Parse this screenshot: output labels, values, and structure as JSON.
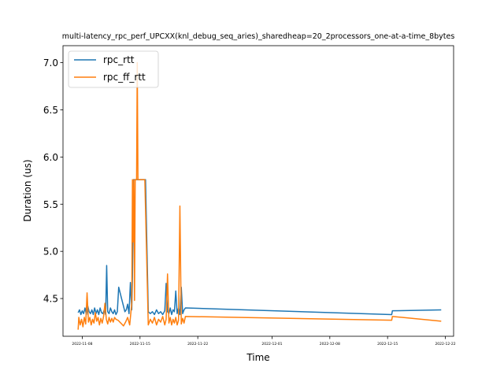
{
  "chart_data": {
    "type": "line",
    "title": "multi-latency_rpc_perf_UPCXX(knl_debug_seq_aries)_sharedheap=20_2processors_one-at-a-time_8bytes",
    "xlabel": "Time",
    "ylabel": "Duration (us)",
    "xlim": [
      "2022-11-05T16:00",
      "2022-12-23T00:00"
    ],
    "ylim": [
      4.1,
      7.18
    ],
    "xticks": [
      "2022-11-08",
      "2022-11-15",
      "2022-11-22",
      "2022-12-01",
      "2022-12-08",
      "2022-12-15",
      "2022-12-22"
    ],
    "yticks": [
      4.5,
      5.0,
      5.5,
      6.0,
      6.5,
      7.0
    ],
    "legend_position": "top-left",
    "colors": {
      "rpc_rtt": "#1f77b4",
      "rpc_ff_rtt": "#ff7f0e"
    },
    "series": [
      {
        "name": "rpc_rtt",
        "color": "#1f77b4",
        "points": [
          [
            "2022-11-07T12:00",
            4.35
          ],
          [
            "2022-11-07T16:00",
            4.38
          ],
          [
            "2022-11-07T20:00",
            4.33
          ],
          [
            "2022-11-08T00:00",
            4.37
          ],
          [
            "2022-11-08T04:00",
            4.34
          ],
          [
            "2022-11-08T08:00",
            4.4
          ],
          [
            "2022-11-08T12:00",
            4.33
          ],
          [
            "2022-11-08T16:00",
            4.42
          ],
          [
            "2022-11-08T20:00",
            4.36
          ],
          [
            "2022-11-09T00:00",
            4.34
          ],
          [
            "2022-11-09T04:00",
            4.38
          ],
          [
            "2022-11-09T08:00",
            4.33
          ],
          [
            "2022-11-09T12:00",
            4.4
          ],
          [
            "2022-11-09T16:00",
            4.34
          ],
          [
            "2022-11-09T20:00",
            4.38
          ],
          [
            "2022-11-10T00:00",
            4.33
          ],
          [
            "2022-11-10T04:00",
            4.4
          ],
          [
            "2022-11-10T08:00",
            4.35
          ],
          [
            "2022-11-10T12:00",
            4.34
          ],
          [
            "2022-11-10T16:00",
            4.38
          ],
          [
            "2022-11-10T20:00",
            4.33
          ],
          [
            "2022-11-10T23:00",
            4.85
          ],
          [
            "2022-11-11T02:00",
            4.36
          ],
          [
            "2022-11-11T06:00",
            4.34
          ],
          [
            "2022-11-11T10:00",
            4.4
          ],
          [
            "2022-11-11T14:00",
            4.36
          ],
          [
            "2022-11-11T18:00",
            4.34
          ],
          [
            "2022-11-11T22:00",
            4.38
          ],
          [
            "2022-11-12T02:00",
            4.33
          ],
          [
            "2022-11-12T06:00",
            4.36
          ],
          [
            "2022-11-12T10:00",
            4.62
          ],
          [
            "2022-11-13T04:00",
            4.36
          ],
          [
            "2022-11-13T08:00",
            4.38
          ],
          [
            "2022-11-13T12:00",
            4.44
          ],
          [
            "2022-11-13T16:00",
            4.34
          ],
          [
            "2022-11-13T20:00",
            4.67
          ],
          [
            "2022-11-14T00:00",
            4.38
          ],
          [
            "2022-11-14T02:00",
            4.73
          ],
          [
            "2022-11-14T05:00",
            5.76
          ],
          [
            "2022-11-14T08:00",
            5.76
          ],
          [
            "2022-11-14T13:00",
            5.76
          ],
          [
            "2022-11-14T18:00",
            5.76
          ],
          [
            "2022-11-14T22:00",
            5.76
          ],
          [
            "2022-11-15T04:00",
            5.76
          ],
          [
            "2022-11-15T10:00",
            5.76
          ],
          [
            "2022-11-15T16:00",
            5.76
          ],
          [
            "2022-11-16T00:00",
            4.36
          ],
          [
            "2022-11-16T06:00",
            4.34
          ],
          [
            "2022-11-16T12:00",
            4.36
          ],
          [
            "2022-11-16T18:00",
            4.33
          ],
          [
            "2022-11-17T00:00",
            4.38
          ],
          [
            "2022-11-17T06:00",
            4.34
          ],
          [
            "2022-11-17T12:00",
            4.36
          ],
          [
            "2022-11-17T18:00",
            4.33
          ],
          [
            "2022-11-18T00:00",
            4.37
          ],
          [
            "2022-11-18T04:00",
            4.66
          ],
          [
            "2022-11-18T08:00",
            4.36
          ],
          [
            "2022-11-18T12:00",
            4.34
          ],
          [
            "2022-11-18T16:00",
            4.4
          ],
          [
            "2022-11-18T20:00",
            4.33
          ],
          [
            "2022-11-19T00:00",
            4.38
          ],
          [
            "2022-11-19T04:00",
            4.36
          ],
          [
            "2022-11-19T08:00",
            4.58
          ],
          [
            "2022-11-19T12:00",
            4.34
          ],
          [
            "2022-11-19T16:00",
            4.4
          ],
          [
            "2022-11-19T20:00",
            4.33
          ],
          [
            "2022-11-20T00:00",
            4.62
          ],
          [
            "2022-11-20T04:00",
            4.34
          ],
          [
            "2022-11-20T08:00",
            4.38
          ],
          [
            "2022-11-20T12:00",
            4.4
          ],
          [
            "2022-12-15T12:00",
            4.33
          ],
          [
            "2022-12-15T14:00",
            4.37
          ],
          [
            "2022-12-21T12:00",
            4.38
          ]
        ]
      },
      {
        "name": "rpc_ff_rtt",
        "color": "#ff7f0e",
        "points": [
          [
            "2022-11-07T12:00",
            4.17
          ],
          [
            "2022-11-07T14:00",
            4.3
          ],
          [
            "2022-11-07T18:00",
            4.22
          ],
          [
            "2022-11-07T22:00",
            4.28
          ],
          [
            "2022-11-08T02:00",
            4.2
          ],
          [
            "2022-11-08T06:00",
            4.3
          ],
          [
            "2022-11-08T10:00",
            4.23
          ],
          [
            "2022-11-08T14:00",
            4.56
          ],
          [
            "2022-11-08T18:00",
            4.25
          ],
          [
            "2022-11-08T22:00",
            4.3
          ],
          [
            "2022-11-09T02:00",
            4.22
          ],
          [
            "2022-11-09T06:00",
            4.28
          ],
          [
            "2022-11-09T10:00",
            4.24
          ],
          [
            "2022-11-09T14:00",
            4.35
          ],
          [
            "2022-11-09T18:00",
            4.26
          ],
          [
            "2022-11-09T22:00",
            4.3
          ],
          [
            "2022-11-10T02:00",
            4.22
          ],
          [
            "2022-11-10T06:00",
            4.29
          ],
          [
            "2022-11-10T10:00",
            4.24
          ],
          [
            "2022-11-10T14:00",
            4.31
          ],
          [
            "2022-11-10T18:00",
            4.45
          ],
          [
            "2022-11-10T22:00",
            4.28
          ],
          [
            "2022-11-11T02:00",
            4.23
          ],
          [
            "2022-11-11T06:00",
            4.3
          ],
          [
            "2022-11-11T10:00",
            4.25
          ],
          [
            "2022-11-11T14:00",
            4.29
          ],
          [
            "2022-11-11T18:00",
            4.25
          ],
          [
            "2022-11-11T22:00",
            4.3
          ],
          [
            "2022-11-12T02:00",
            4.28
          ],
          [
            "2022-11-12T08:00",
            4.27
          ],
          [
            "2022-11-13T00:00",
            4.21
          ],
          [
            "2022-11-13T06:00",
            4.25
          ],
          [
            "2022-11-13T12:00",
            4.3
          ],
          [
            "2022-11-13T18:00",
            4.22
          ],
          [
            "2022-11-14T00:00",
            4.45
          ],
          [
            "2022-11-14T02:00",
            5.76
          ],
          [
            "2022-11-14T04:00",
            5.1
          ],
          [
            "2022-11-14T06:00",
            5.76
          ],
          [
            "2022-11-14T08:00",
            4.48
          ],
          [
            "2022-11-14T10:00",
            5.76
          ],
          [
            "2022-11-14T14:00",
            5.76
          ],
          [
            "2022-11-14T16:00",
            7.0
          ],
          [
            "2022-11-14T18:00",
            5.76
          ],
          [
            "2022-11-15T06:00",
            5.76
          ],
          [
            "2022-11-15T14:00",
            5.76
          ],
          [
            "2022-11-16T00:00",
            4.22
          ],
          [
            "2022-11-16T06:00",
            4.28
          ],
          [
            "2022-11-16T12:00",
            4.24
          ],
          [
            "2022-11-16T18:00",
            4.3
          ],
          [
            "2022-11-17T00:00",
            4.22
          ],
          [
            "2022-11-17T06:00",
            4.28
          ],
          [
            "2022-11-17T12:00",
            4.25
          ],
          [
            "2022-11-17T18:00",
            4.31
          ],
          [
            "2022-11-18T00:00",
            4.22
          ],
          [
            "2022-11-18T04:00",
            4.28
          ],
          [
            "2022-11-18T08:00",
            4.76
          ],
          [
            "2022-11-18T12:00",
            4.24
          ],
          [
            "2022-11-18T16:00",
            4.3
          ],
          [
            "2022-11-18T20:00",
            4.22
          ],
          [
            "2022-11-19T00:00",
            4.28
          ],
          [
            "2022-11-19T04:00",
            4.24
          ],
          [
            "2022-11-19T08:00",
            4.3
          ],
          [
            "2022-11-19T12:00",
            4.22
          ],
          [
            "2022-11-19T16:00",
            4.27
          ],
          [
            "2022-11-19T20:00",
            5.48
          ],
          [
            "2022-11-20T00:00",
            4.23
          ],
          [
            "2022-11-20T04:00",
            4.29
          ],
          [
            "2022-11-20T08:00",
            4.24
          ],
          [
            "2022-11-20T12:00",
            4.31
          ],
          [
            "2022-12-15T12:00",
            4.27
          ],
          [
            "2022-12-15T14:00",
            4.31
          ],
          [
            "2022-12-21T12:00",
            4.26
          ]
        ]
      }
    ]
  }
}
